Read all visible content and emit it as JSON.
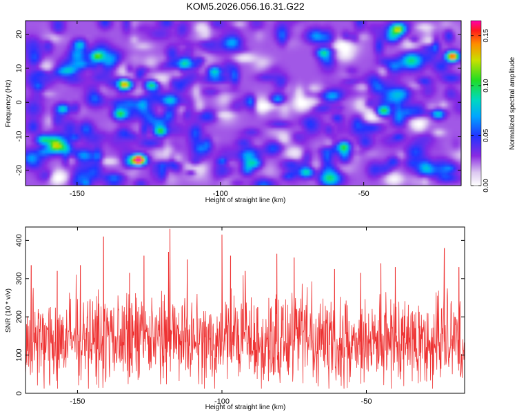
{
  "title": "KOM5.2026.056.16.31.G22",
  "chart_data": [
    {
      "type": "heatmap",
      "xlabel": "Height of straight line (km)",
      "ylabel": "Frequency (Hz)",
      "xlim": [
        -168,
        -16
      ],
      "ylim": [
        -24.5,
        24
      ],
      "xticks": [
        -150,
        -100,
        -50
      ],
      "xtick_labels": [
        "-150",
        "-100",
        "-50"
      ],
      "yticks": [
        -20,
        -10,
        0,
        10,
        20
      ],
      "ytick_labels": [
        "-20",
        "-10",
        "0",
        "10",
        "20"
      ],
      "colorbar": {
        "label": "Normalized spectral amplitude",
        "range": [
          0,
          0.165
        ],
        "ticks": [
          0.0,
          0.05,
          0.1,
          0.15
        ],
        "tick_labels": [
          "0.00",
          "0.05",
          "0.10",
          "0.15"
        ]
      },
      "background_level": 0.025,
      "hotspots": [
        {
          "x": -128.5,
          "y": -17.0,
          "value": 0.16
        },
        {
          "x": -19.0,
          "y": 13.5,
          "value": 0.155
        },
        {
          "x": -133.0,
          "y": 5.2,
          "value": 0.12
        },
        {
          "x": -124.0,
          "y": 5.0,
          "value": 0.1
        },
        {
          "x": -43.0,
          "y": -2.5,
          "value": 0.105
        },
        {
          "x": -121.0,
          "y": -8.5,
          "value": 0.1
        },
        {
          "x": -143.0,
          "y": 13.5,
          "value": 0.095
        },
        {
          "x": -38.0,
          "y": 21.5,
          "value": 0.095
        },
        {
          "x": -57.0,
          "y": -13.0,
          "value": 0.09
        },
        {
          "x": -64.0,
          "y": 14.5,
          "value": 0.09
        },
        {
          "x": -162.0,
          "y": -11.0,
          "value": 0.085
        },
        {
          "x": -155.0,
          "y": -2.0,
          "value": 0.085
        },
        {
          "x": -135.0,
          "y": -3.5,
          "value": 0.08
        },
        {
          "x": -102.0,
          "y": 9.0,
          "value": 0.08
        },
        {
          "x": -24.0,
          "y": -3.5,
          "value": 0.08
        },
        {
          "x": -88.0,
          "y": -18.0,
          "value": 0.075
        },
        {
          "x": -149.0,
          "y": 17.0,
          "value": 0.075
        },
        {
          "x": -80.0,
          "y": 1.0,
          "value": 0.07
        },
        {
          "x": -70.0,
          "y": -20.5,
          "value": 0.07
        },
        {
          "x": -112.0,
          "y": 12.0,
          "value": 0.07
        }
      ]
    },
    {
      "type": "line",
      "color": "#ee3333",
      "xlabel": "Height of straight line (km)",
      "ylabel": "SNR (10 * v/v)",
      "xlim": [
        -168,
        -16
      ],
      "ylim": [
        0,
        435
      ],
      "xticks": [
        -150,
        -100,
        -50
      ],
      "xtick_labels": [
        "-150",
        "-100",
        "-50"
      ],
      "yticks": [
        0,
        100,
        200,
        300,
        400
      ],
      "ytick_labels": [
        "0",
        "100",
        "200",
        "300",
        "400"
      ],
      "baseline_mean": 135,
      "peaks": [
        {
          "x": -118.0,
          "y": 430
        },
        {
          "x": -100.0,
          "y": 415
        },
        {
          "x": -141.0,
          "y": 410
        },
        {
          "x": -23.0,
          "y": 380
        },
        {
          "x": -118.5,
          "y": 370
        },
        {
          "x": -81.0,
          "y": 365
        },
        {
          "x": -127.0,
          "y": 360
        },
        {
          "x": -97.0,
          "y": 360
        },
        {
          "x": -75.0,
          "y": 355
        },
        {
          "x": -112.0,
          "y": 350
        },
        {
          "x": -166.0,
          "y": 335
        },
        {
          "x": -149.0,
          "y": 335
        },
        {
          "x": -45.0,
          "y": 340
        },
        {
          "x": -40.0,
          "y": 330
        },
        {
          "x": -18.0,
          "y": 330
        },
        {
          "x": -61.0,
          "y": 325
        },
        {
          "x": -157.0,
          "y": 320
        },
        {
          "x": -132.0,
          "y": 315
        },
        {
          "x": -92.0,
          "y": 320
        },
        {
          "x": -52.0,
          "y": 315
        }
      ]
    }
  ]
}
